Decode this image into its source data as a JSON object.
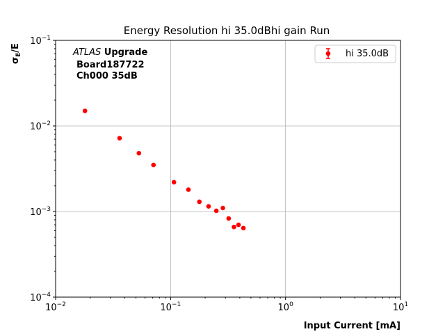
{
  "chart_data": {
    "type": "scatter",
    "title": "Energy Resolution hi 35.0dBhi gain Run",
    "xlabel": "Input Current [mA]",
    "ylabel_main": "σ",
    "ylabel_sub": "E",
    "ylabel_tail": "/E",
    "xscale": "log",
    "yscale": "log",
    "xlim": [
      0.01,
      10
    ],
    "ylim": [
      0.0001,
      0.1
    ],
    "grid": true,
    "legend_position": "top-right",
    "x_ticks": [
      {
        "value": 0.01,
        "base": "10",
        "exp": "−2"
      },
      {
        "value": 0.1,
        "base": "10",
        "exp": "−1"
      },
      {
        "value": 1,
        "base": "10",
        "exp": "0"
      },
      {
        "value": 10,
        "base": "10",
        "exp": "1"
      }
    ],
    "y_ticks": [
      {
        "value": 0.0001,
        "base": "10",
        "exp": "−4"
      },
      {
        "value": 0.001,
        "base": "10",
        "exp": "−3"
      },
      {
        "value": 0.01,
        "base": "10",
        "exp": "−2"
      },
      {
        "value": 0.1,
        "base": "10",
        "exp": "−1"
      }
    ],
    "annotation": {
      "line1_italic": "ATLAS",
      "line1_bold": " Upgrade",
      "line2": "Board187722",
      "line3": "Ch000 35dB"
    },
    "series": [
      {
        "name": "hi 35.0dB",
        "color": "#ff0000",
        "x": [
          0.018,
          0.036,
          0.053,
          0.071,
          0.107,
          0.143,
          0.178,
          0.214,
          0.25,
          0.285,
          0.32,
          0.356,
          0.39,
          0.43
        ],
        "y": [
          0.015,
          0.0072,
          0.0048,
          0.0035,
          0.0022,
          0.0018,
          0.0013,
          0.00115,
          0.00102,
          0.0011,
          0.00083,
          0.00066,
          0.0007,
          0.00064
        ]
      }
    ]
  }
}
